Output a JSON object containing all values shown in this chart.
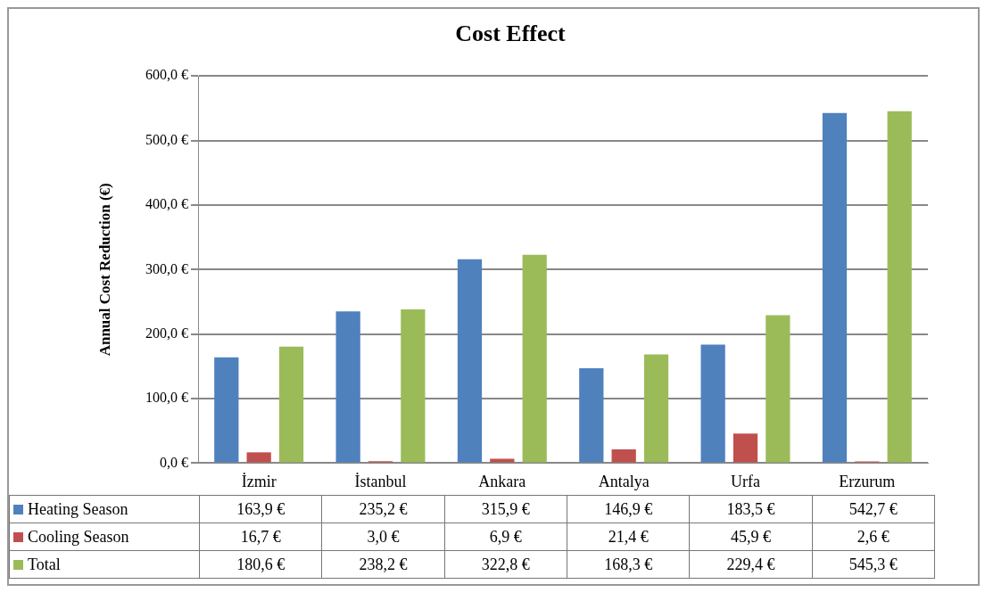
{
  "chart_data": {
    "type": "bar",
    "title": "Cost Effect",
    "ylabel": "Annual Cost Reduction (€)",
    "categories": [
      "İzmir",
      "İstanbul",
      "Ankara",
      "Antalya",
      "Urfa",
      "Erzurum"
    ],
    "series": [
      {
        "name": "Heating Season",
        "color": "#4f81bd",
        "values": [
          163.9,
          235.2,
          315.9,
          146.9,
          183.5,
          542.7
        ],
        "value_labels": [
          "163,9 €",
          "235,2 €",
          "315,9 €",
          "146,9 €",
          "183,5 €",
          "542,7 €"
        ]
      },
      {
        "name": "Cooling Season",
        "color": "#c0504d",
        "values": [
          16.7,
          3.0,
          6.9,
          21.4,
          45.9,
          2.6
        ],
        "value_labels": [
          "16,7 €",
          "3,0 €",
          "6,9 €",
          "21,4 €",
          "45,9 €",
          "2,6 €"
        ]
      },
      {
        "name": "Total",
        "color": "#9bbb59",
        "values": [
          180.6,
          238.2,
          322.8,
          168.3,
          229.4,
          545.3
        ],
        "value_labels": [
          "180,6 €",
          "238,2 €",
          "322,8 €",
          "168,3 €",
          "229,4 €",
          "545,3 €"
        ]
      }
    ],
    "ylim": [
      0,
      600
    ],
    "yticks": [
      {
        "value": 0,
        "label": "0,0 €"
      },
      {
        "value": 100,
        "label": "100,0 €"
      },
      {
        "value": 200,
        "label": "200,0 €"
      },
      {
        "value": 300,
        "label": "300,0 €"
      },
      {
        "value": 400,
        "label": "400,0 €"
      },
      {
        "value": 500,
        "label": "500,0 €"
      },
      {
        "value": 600,
        "label": "600,0 €"
      }
    ],
    "grid": "y",
    "legend": "bottom"
  }
}
